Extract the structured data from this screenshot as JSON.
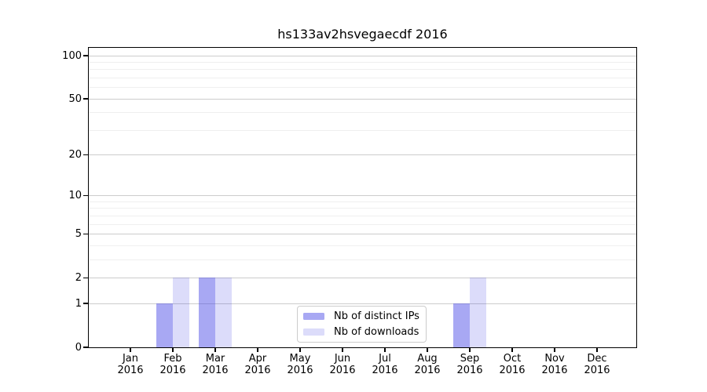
{
  "figure": {
    "background": "#ffffff"
  },
  "chart_data": {
    "type": "bar",
    "title": "hs133av2hsvegaecdf 2016",
    "categories": [
      "Jan 2016",
      "Feb 2016",
      "Mar 2016",
      "Apr 2016",
      "May 2016",
      "Jun 2016",
      "Jul 2016",
      "Aug 2016",
      "Sep 2016",
      "Oct 2016",
      "Nov 2016",
      "Dec 2016"
    ],
    "series": [
      {
        "name": "Nb of distinct IPs",
        "color": "rgba(70,70,230,0.47)",
        "values": [
          0,
          1,
          2,
          0,
          0,
          0,
          0,
          0,
          1,
          0,
          0,
          0
        ]
      },
      {
        "name": "Nb of downloads",
        "color": "rgba(70,70,230,0.19)",
        "values": [
          0,
          2,
          2,
          0,
          0,
          0,
          0,
          0,
          2,
          0,
          0,
          0
        ]
      }
    ],
    "y_axis": {
      "scale": "log10(1+value)",
      "major_ticks": [
        0,
        1,
        2,
        5,
        10,
        20,
        50,
        100
      ],
      "minor_ticks": [
        3,
        4,
        6,
        7,
        8,
        9,
        30,
        40,
        60,
        70,
        80,
        90
      ],
      "range": [
        0,
        110
      ]
    },
    "x_axis": {
      "label": "",
      "year": "2016"
    },
    "grid": {
      "which": "both",
      "major_color": "#cccccc",
      "minor_color": "#efefef"
    },
    "legend": {
      "position": "lower center",
      "border_color": "#cccccc",
      "background": "#ffffff"
    },
    "axis_color": "#000000",
    "text_color": "#000000"
  }
}
